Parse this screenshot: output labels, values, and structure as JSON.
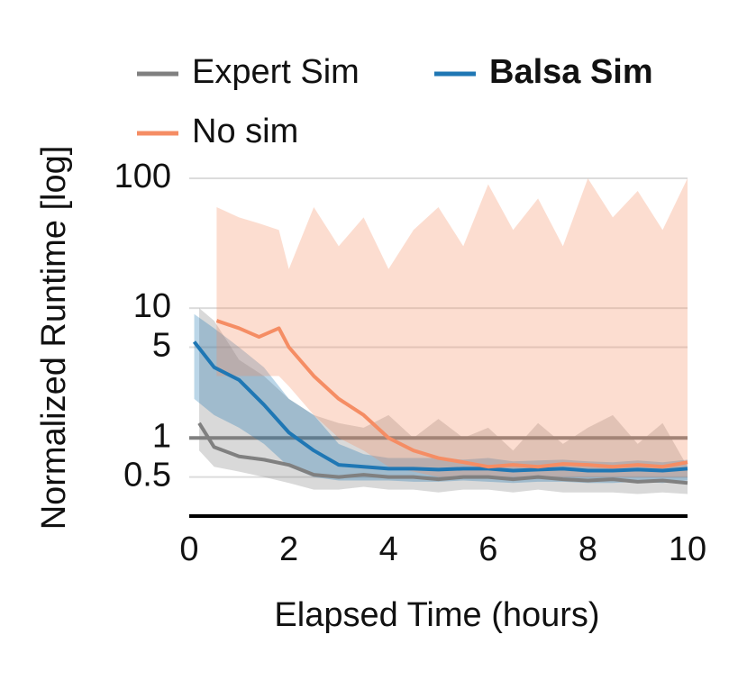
{
  "chart_data": {
    "type": "line",
    "x_label": "Elapsed Time (hours)",
    "y_label": "Normalized Runtime [log]",
    "xlim": [
      0,
      10
    ],
    "xticks": [
      0,
      2,
      4,
      6,
      8,
      10
    ],
    "ylim": [
      0.25,
      100
    ],
    "yticks": [
      0.5,
      1,
      5,
      10,
      100
    ],
    "log_y": true,
    "grid": true,
    "hline": {
      "value": 1,
      "color": "#808080"
    },
    "series": [
      {
        "name": "Expert Sim",
        "color": "#808080",
        "x": [
          0.2,
          0.5,
          1,
          1.5,
          2,
          2.5,
          3,
          3.5,
          4,
          4.5,
          5,
          5.5,
          6,
          6.5,
          7,
          7.5,
          8,
          8.5,
          9,
          9.5,
          10
        ],
        "values": [
          1.3,
          0.85,
          0.72,
          0.68,
          0.62,
          0.52,
          0.5,
          0.52,
          0.5,
          0.5,
          0.48,
          0.5,
          0.5,
          0.48,
          0.5,
          0.48,
          0.47,
          0.48,
          0.46,
          0.47,
          0.45
        ],
        "lower": [
          0.8,
          0.6,
          0.55,
          0.5,
          0.45,
          0.4,
          0.4,
          0.42,
          0.4,
          0.4,
          0.38,
          0.4,
          0.4,
          0.38,
          0.4,
          0.38,
          0.38,
          0.38,
          0.37,
          0.38,
          0.37
        ],
        "upper": [
          10,
          8,
          4,
          3,
          2,
          1.5,
          1.3,
          1.2,
          1.5,
          1,
          1.4,
          1,
          1.2,
          0.8,
          1.3,
          0.9,
          1.2,
          1.5,
          0.9,
          1.3,
          0.6
        ]
      },
      {
        "name": "Balsa Sim",
        "color": "#1f77b4",
        "bold": true,
        "x": [
          0.1,
          0.5,
          1,
          1.5,
          2,
          2.5,
          3,
          3.5,
          4,
          4.5,
          5,
          5.5,
          6,
          6.5,
          7,
          7.5,
          8,
          8.5,
          9,
          9.5,
          10
        ],
        "values": [
          5.5,
          3.5,
          2.8,
          1.8,
          1.1,
          0.8,
          0.62,
          0.6,
          0.58,
          0.58,
          0.57,
          0.58,
          0.58,
          0.56,
          0.57,
          0.58,
          0.56,
          0.56,
          0.57,
          0.56,
          0.58
        ],
        "lower": [
          2,
          1.5,
          1.2,
          0.9,
          0.6,
          0.5,
          0.47,
          0.47,
          0.47,
          0.46,
          0.46,
          0.47,
          0.46,
          0.45,
          0.46,
          0.46,
          0.45,
          0.45,
          0.46,
          0.45,
          0.47
        ],
        "upper": [
          9,
          7,
          5,
          3.5,
          2,
          1.5,
          0.9,
          0.75,
          0.7,
          0.7,
          0.7,
          0.68,
          0.7,
          0.66,
          0.67,
          0.68,
          0.66,
          0.65,
          0.67,
          0.65,
          0.68
        ]
      },
      {
        "name": "No sim",
        "color": "#f58d64",
        "x": [
          0.55,
          1,
          1.4,
          1.8,
          2,
          2.5,
          3,
          3.5,
          4,
          4.5,
          5,
          5.5,
          6,
          6.5,
          7,
          7.5,
          8,
          8.5,
          9,
          9.5,
          10
        ],
        "values": [
          8,
          7,
          6,
          7,
          5,
          3,
          2,
          1.5,
          1,
          0.8,
          0.7,
          0.65,
          0.6,
          0.62,
          0.6,
          0.63,
          0.62,
          0.6,
          0.62,
          0.6,
          0.65
        ],
        "lower": [
          3,
          3,
          3,
          3,
          2.5,
          1.5,
          1,
          0.8,
          0.6,
          0.55,
          0.5,
          0.5,
          0.5,
          0.5,
          0.5,
          0.5,
          0.5,
          0.5,
          0.5,
          0.5,
          0.5
        ],
        "upper": [
          60,
          50,
          45,
          40,
          20,
          60,
          30,
          50,
          20,
          40,
          60,
          30,
          90,
          40,
          70,
          30,
          100,
          50,
          80,
          40,
          100
        ]
      }
    ]
  }
}
